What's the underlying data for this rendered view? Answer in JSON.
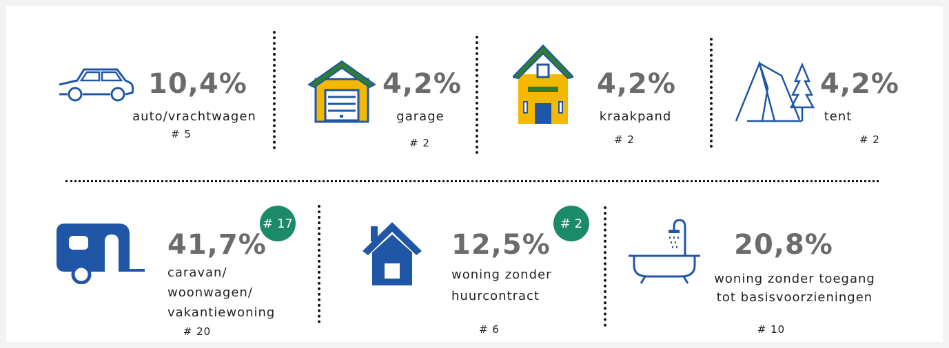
{
  "items": [
    {
      "percent": "10,4%",
      "label": [
        "auto/vrachtwagen"
      ],
      "count": "# 5"
    },
    {
      "percent": "4,2%",
      "label": [
        "garage"
      ],
      "count": "# 2"
    },
    {
      "percent": "4,2%",
      "label": [
        "kraakpand"
      ],
      "count": "# 2"
    },
    {
      "percent": "4,2%",
      "label": [
        "tent"
      ],
      "count": "# 2"
    },
    {
      "percent": "41,7%",
      "label": [
        "caravan/",
        "woonwagen/",
        "vakantiewoning"
      ],
      "count": "# 20",
      "badge": "# 17"
    },
    {
      "percent": "12,5%",
      "label": [
        "woning zonder",
        "huurcontract"
      ],
      "count": "# 6",
      "badge": "# 2"
    },
    {
      "percent": "20,8%",
      "label": [
        "woning zonder toegang",
        "tot basisvoorzieningen"
      ],
      "count": "# 10"
    }
  ]
}
